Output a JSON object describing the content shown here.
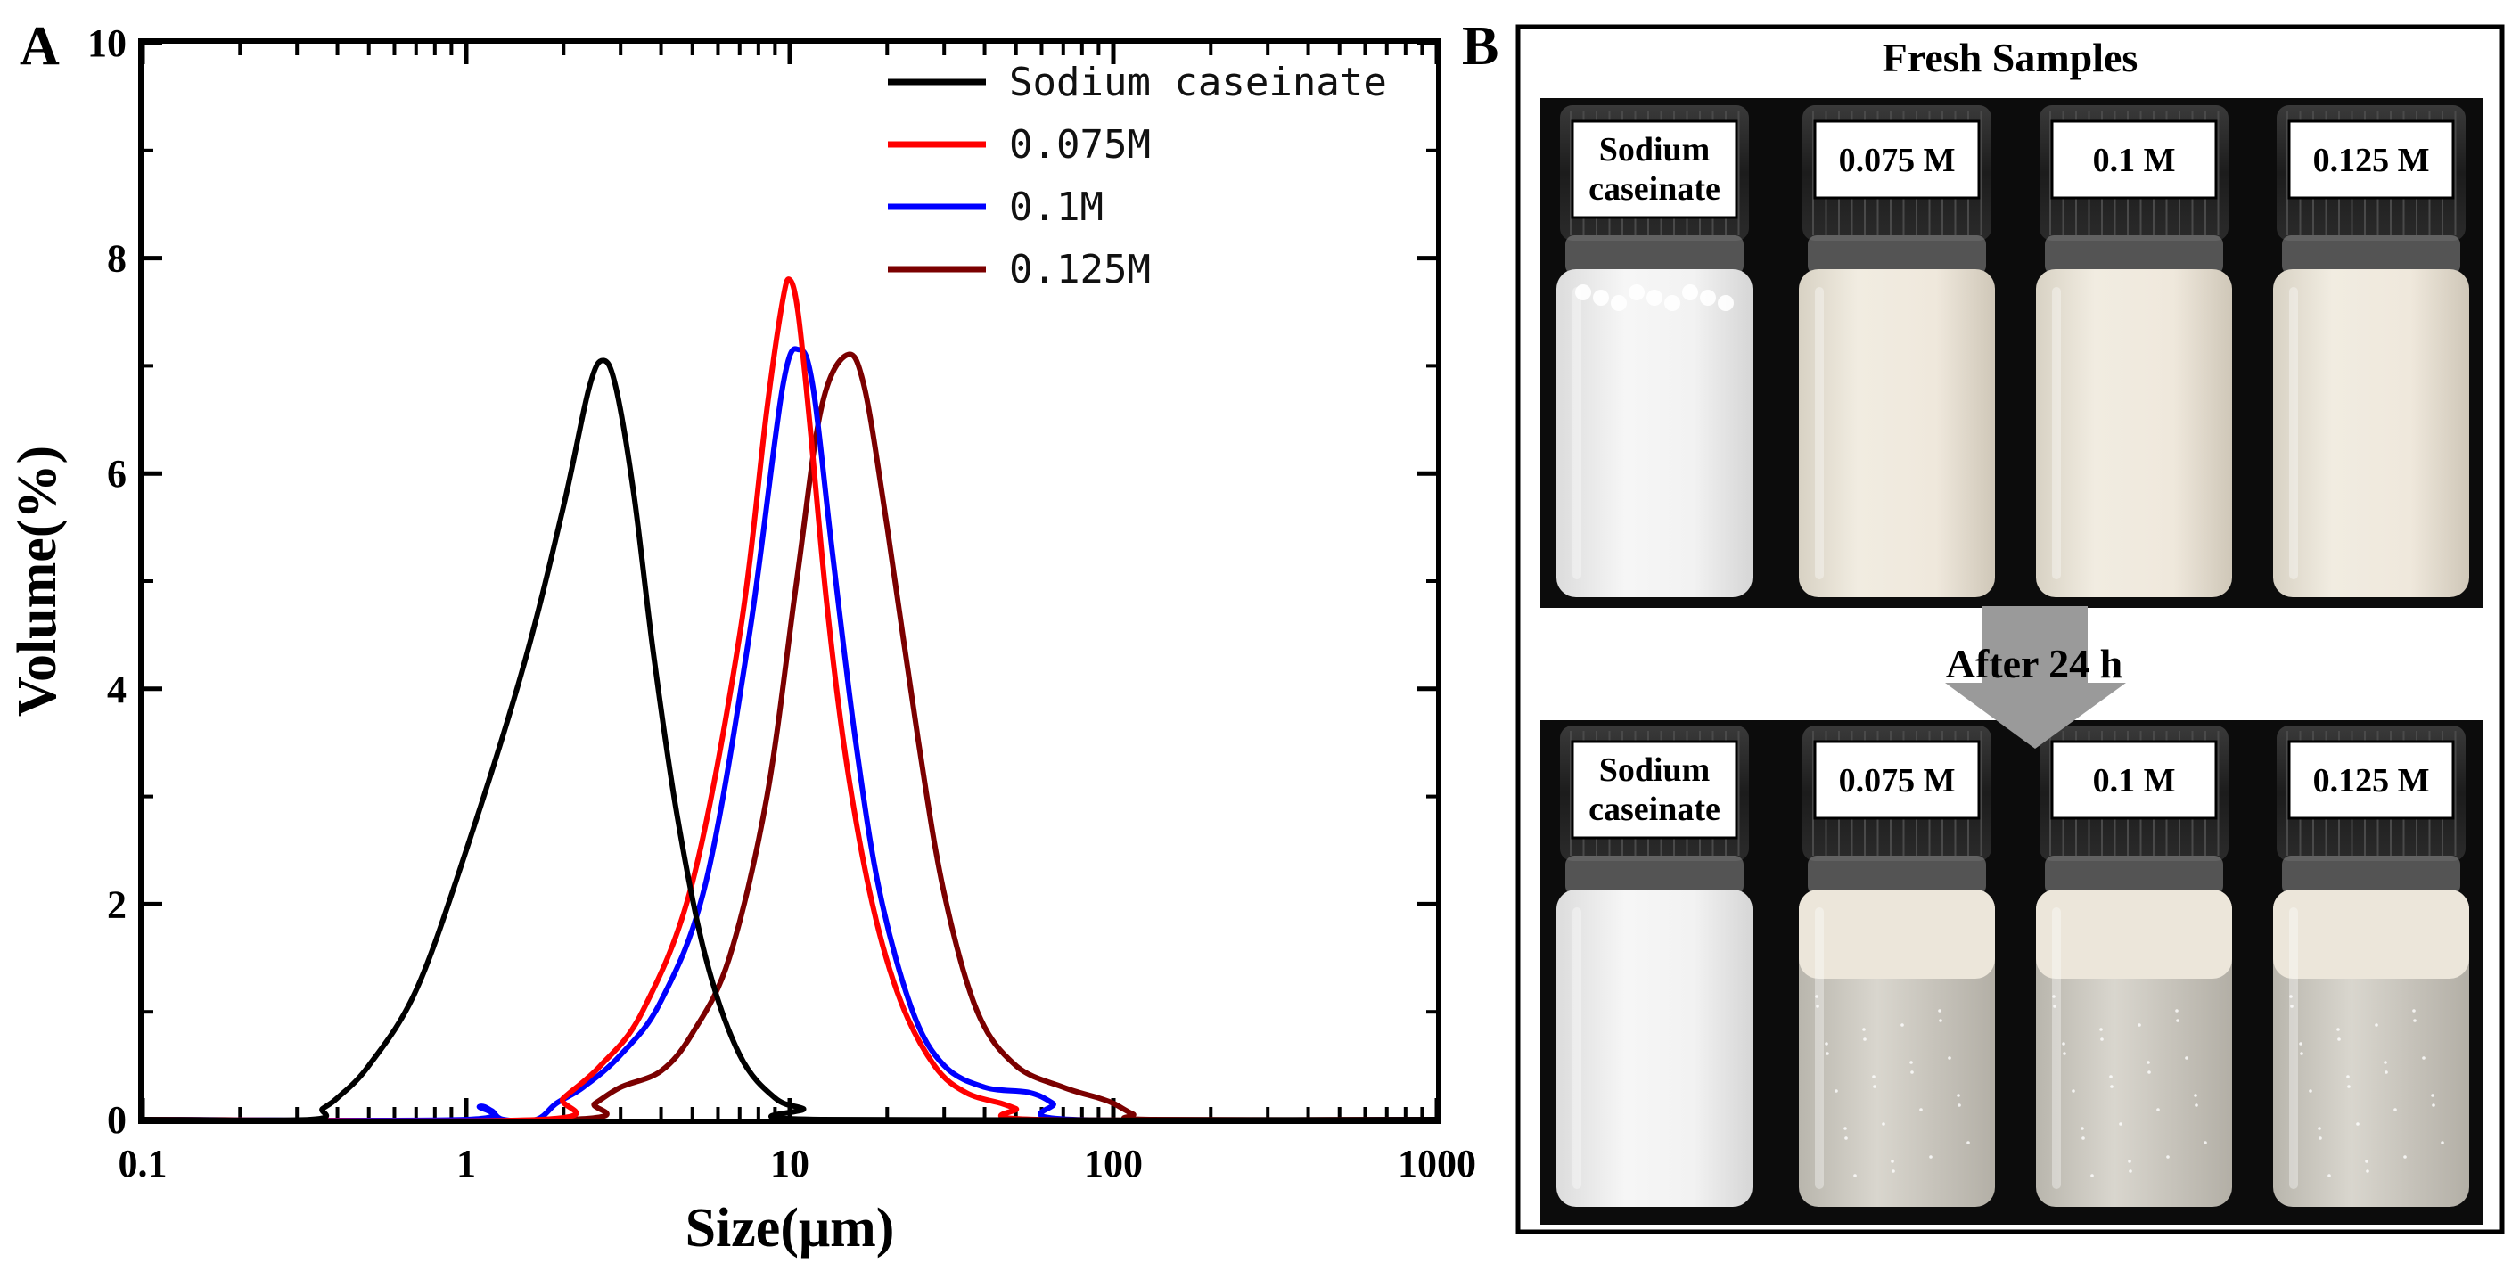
{
  "panels": {
    "a_label": "A",
    "b_label": "B"
  },
  "chart_data": {
    "type": "line",
    "title": "",
    "xlabel": "Size(μm)",
    "ylabel": "Volume(%)",
    "xscale": "log",
    "xlim": [
      0.1,
      1000
    ],
    "ylim": [
      0,
      10
    ],
    "xticks": [
      0.1,
      1,
      10,
      100,
      1000
    ],
    "xtick_labels": [
      "0.1",
      "1",
      "10",
      "100",
      "1000"
    ],
    "yticks": [
      0,
      2,
      4,
      6,
      8,
      10
    ],
    "ytick_labels": [
      "0",
      "2",
      "4",
      "6",
      "8",
      "10"
    ],
    "legend_position": "top-right",
    "series": [
      {
        "name": "Sodium caseinate",
        "color": "#000000",
        "points": [
          [
            0.1,
            0
          ],
          [
            0.33,
            0
          ],
          [
            0.36,
            0.1
          ],
          [
            0.4,
            0.2
          ],
          [
            0.5,
            0.5
          ],
          [
            0.7,
            1.2
          ],
          [
            1.0,
            2.5
          ],
          [
            1.5,
            4.2
          ],
          [
            2.0,
            5.7
          ],
          [
            2.4,
            6.8
          ],
          [
            2.65,
            7.05
          ],
          [
            2.9,
            6.8
          ],
          [
            3.3,
            5.8
          ],
          [
            3.8,
            4.3
          ],
          [
            4.5,
            2.8
          ],
          [
            5.5,
            1.5
          ],
          [
            7,
            0.6
          ],
          [
            9,
            0.2
          ],
          [
            11,
            0.1
          ],
          [
            12.5,
            0
          ],
          [
            1000,
            0
          ]
        ]
      },
      {
        "name": "0.075M",
        "color": "#ff0000",
        "points": [
          [
            0.1,
            0
          ],
          [
            1.7,
            0
          ],
          [
            2.0,
            0.2
          ],
          [
            2.6,
            0.5
          ],
          [
            3.5,
            1.0
          ],
          [
            5,
            2.2
          ],
          [
            7,
            4.5
          ],
          [
            8.5,
            6.6
          ],
          [
            9.5,
            7.6
          ],
          [
            10,
            7.8
          ],
          [
            10.6,
            7.5
          ],
          [
            11.5,
            6.5
          ],
          [
            13,
            4.8
          ],
          [
            15,
            3.3
          ],
          [
            18,
            2.0
          ],
          [
            22,
            1.1
          ],
          [
            28,
            0.5
          ],
          [
            35,
            0.25
          ],
          [
            45,
            0.15
          ],
          [
            50,
            0.1
          ],
          [
            58,
            0
          ],
          [
            1000,
            0
          ]
        ]
      },
      {
        "name": "0.1M",
        "color": "#0000ff",
        "points": [
          [
            0.1,
            0
          ],
          [
            1.0,
            0
          ],
          [
            1.1,
            0.12
          ],
          [
            1.2,
            0.08
          ],
          [
            1.3,
            0
          ],
          [
            1.65,
            0
          ],
          [
            1.9,
            0.15
          ],
          [
            2.3,
            0.3
          ],
          [
            3,
            0.6
          ],
          [
            4,
            1.1
          ],
          [
            5.5,
            2.2
          ],
          [
            7.5,
            4.5
          ],
          [
            9.5,
            6.8
          ],
          [
            10.7,
            7.15
          ],
          [
            11.8,
            6.8
          ],
          [
            13.5,
            5.3
          ],
          [
            16,
            3.5
          ],
          [
            19,
            2.1
          ],
          [
            24,
            1.0
          ],
          [
            30,
            0.5
          ],
          [
            40,
            0.3
          ],
          [
            55,
            0.25
          ],
          [
            65,
            0.15
          ],
          [
            75,
            0
          ],
          [
            1000,
            0
          ]
        ]
      },
      {
        "name": "0.125M",
        "color": "#7b0000",
        "points": [
          [
            0.1,
            0
          ],
          [
            2.05,
            0
          ],
          [
            2.5,
            0.15
          ],
          [
            3,
            0.3
          ],
          [
            4,
            0.45
          ],
          [
            5,
            0.8
          ],
          [
            6.5,
            1.5
          ],
          [
            8.5,
            3.0
          ],
          [
            10.5,
            5.0
          ],
          [
            12.5,
            6.6
          ],
          [
            15,
            7.1
          ],
          [
            17,
            6.8
          ],
          [
            20,
            5.5
          ],
          [
            25,
            3.5
          ],
          [
            30,
            2.1
          ],
          [
            38,
            1.0
          ],
          [
            50,
            0.5
          ],
          [
            70,
            0.3
          ],
          [
            90,
            0.2
          ],
          [
            100,
            0.15
          ],
          [
            115,
            0.05
          ],
          [
            130,
            0
          ],
          [
            1000,
            0
          ]
        ]
      }
    ]
  },
  "photos": {
    "fresh_heading": "Fresh Samples",
    "after_heading": "After 24 h",
    "fresh_vials": [
      "Sodium\ncaseinate",
      "0.075 M",
      "0.1 M",
      "0.125 M"
    ],
    "after_vials": [
      "Sodium\ncaseinate",
      "0.075 M",
      "0.1 M",
      "0.125 M"
    ]
  }
}
